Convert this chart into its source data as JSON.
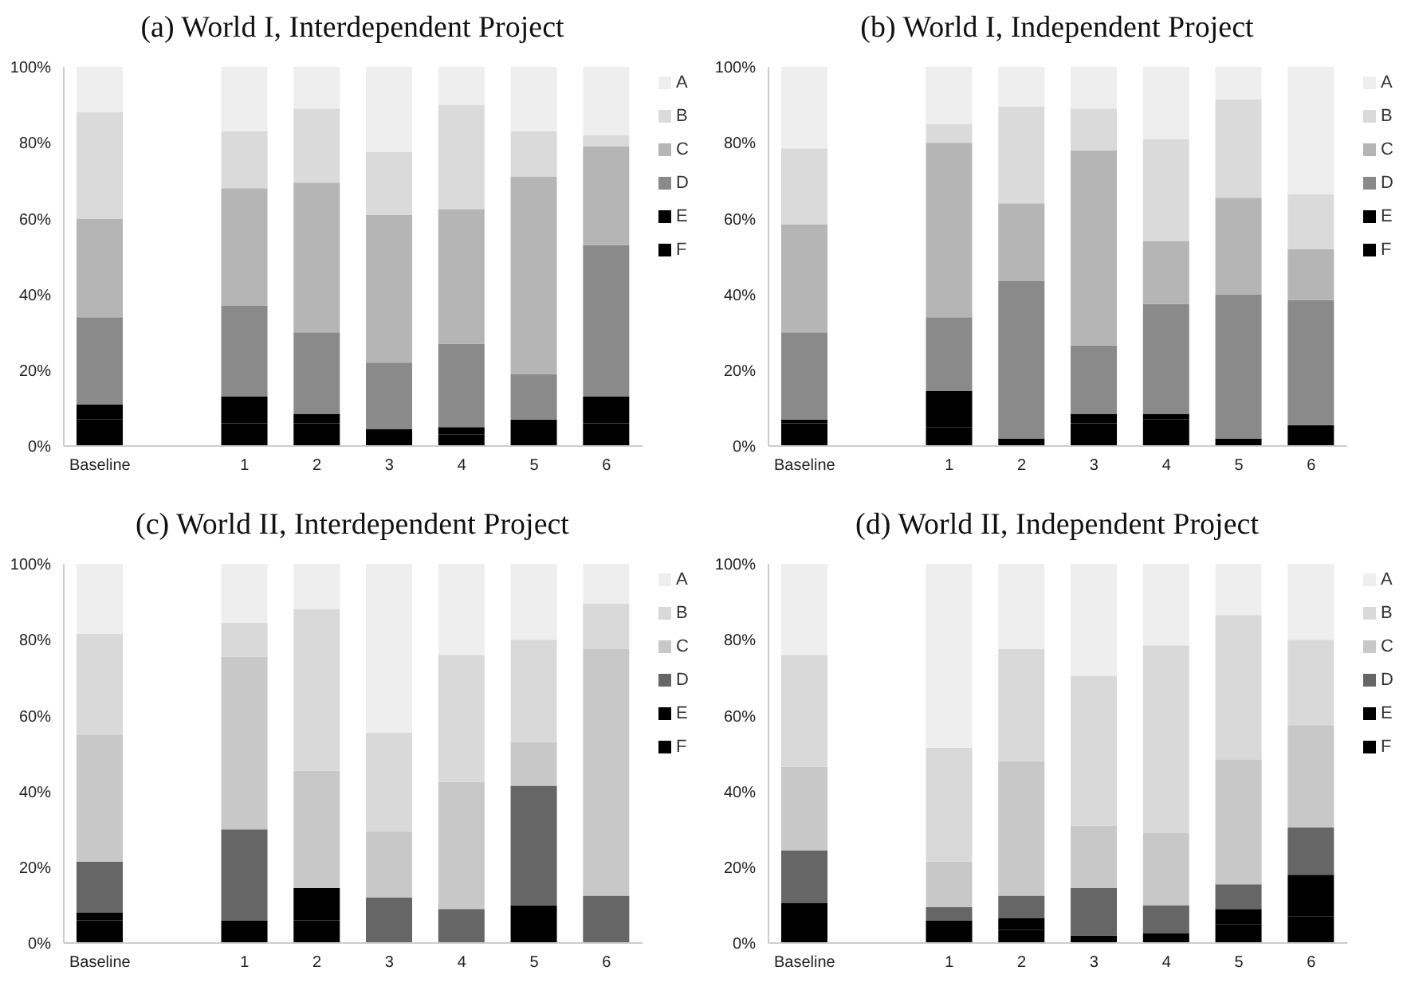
{
  "chart_data": [
    {
      "type": "bar",
      "title": "(a) World I, Interdependent Project",
      "categories": [
        "Baseline",
        null,
        "1",
        "2",
        "3",
        "4",
        "5",
        "6"
      ],
      "stacked": true,
      "ylim": [
        0,
        100
      ],
      "yticks": [
        {
          "value": 0,
          "label": "0%"
        },
        {
          "value": 20,
          "label": "20%"
        },
        {
          "value": 40,
          "label": "40%"
        },
        {
          "value": 60,
          "label": "60%"
        },
        {
          "value": 80,
          "label": "80%"
        },
        {
          "value": 100,
          "label": "100%"
        }
      ],
      "legend": "right",
      "grid": false,
      "series": [
        {
          "name": "F",
          "color": "#000000",
          "values": [
            7,
            null,
            6,
            6,
            2.5,
            3,
            7,
            6
          ]
        },
        {
          "name": "E",
          "color": "#000000",
          "values": [
            4,
            null,
            7,
            2.5,
            2,
            2,
            0,
            7
          ]
        },
        {
          "name": "D",
          "color": "#8a8a8a",
          "values": [
            23,
            null,
            24,
            21.5,
            17.5,
            22,
            12,
            40
          ]
        },
        {
          "name": "C",
          "color": "#b5b5b5",
          "values": [
            26,
            null,
            31,
            39.5,
            39,
            35.5,
            52,
            26
          ]
        },
        {
          "name": "B",
          "color": "#dadada",
          "values": [
            28,
            null,
            15,
            19.5,
            16.5,
            27.5,
            12,
            3
          ]
        },
        {
          "name": "A",
          "color": "#eeeeee",
          "values": [
            12,
            null,
            17,
            11,
            22.5,
            10,
            17,
            18
          ]
        }
      ]
    },
    {
      "type": "bar",
      "title": "(b) World I, Independent Project",
      "categories": [
        "Baseline",
        null,
        "1",
        "2",
        "3",
        "4",
        "5",
        "6"
      ],
      "stacked": true,
      "ylim": [
        0,
        100
      ],
      "yticks": [
        {
          "value": 0,
          "label": "0%"
        },
        {
          "value": 20,
          "label": "20%"
        },
        {
          "value": 40,
          "label": "40%"
        },
        {
          "value": 60,
          "label": "60%"
        },
        {
          "value": 80,
          "label": "80%"
        },
        {
          "value": 100,
          "label": "100%"
        }
      ],
      "legend": "right",
      "grid": false,
      "series": [
        {
          "name": "F",
          "color": "#000000",
          "values": [
            6,
            null,
            5,
            2,
            6,
            7,
            2,
            5.5
          ]
        },
        {
          "name": "E",
          "color": "#000000",
          "values": [
            1,
            null,
            9.5,
            0,
            2.5,
            1.5,
            0,
            0
          ]
        },
        {
          "name": "D",
          "color": "#8a8a8a",
          "values": [
            23,
            null,
            19.5,
            41.5,
            18,
            29,
            38,
            33
          ]
        },
        {
          "name": "C",
          "color": "#b5b5b5",
          "values": [
            28.5,
            null,
            46,
            20.5,
            51.5,
            16.5,
            25.5,
            13.5
          ]
        },
        {
          "name": "B",
          "color": "#dadada",
          "values": [
            20,
            null,
            5,
            25.5,
            11,
            27,
            26,
            14.5
          ]
        },
        {
          "name": "A",
          "color": "#eeeeee",
          "values": [
            21.5,
            null,
            15,
            10.5,
            11,
            19,
            8.5,
            33.5
          ]
        }
      ]
    },
    {
      "type": "bar",
      "title": "(c) World II, Interdependent Project",
      "categories": [
        "Baseline",
        null,
        "1",
        "2",
        "3",
        "4",
        "5",
        "6"
      ],
      "stacked": true,
      "ylim": [
        0,
        100
      ],
      "yticks": [
        {
          "value": 0,
          "label": "0%"
        },
        {
          "value": 20,
          "label": "20%"
        },
        {
          "value": 40,
          "label": "40%"
        },
        {
          "value": 60,
          "label": "60%"
        },
        {
          "value": 80,
          "label": "80%"
        },
        {
          "value": 100,
          "label": "100%"
        }
      ],
      "legend": "right",
      "grid": false,
      "series": [
        {
          "name": "F",
          "color": "#000000",
          "values": [
            6,
            null,
            6,
            6,
            0,
            0,
            8,
            0
          ]
        },
        {
          "name": "E",
          "color": "#000000",
          "values": [
            2,
            null,
            0,
            8.5,
            0,
            0,
            2,
            0
          ]
        },
        {
          "name": "D",
          "color": "#666666",
          "values": [
            13.5,
            null,
            24,
            0,
            12,
            9,
            31.5,
            12.5
          ]
        },
        {
          "name": "C",
          "color": "#c8c8c8",
          "values": [
            33.5,
            null,
            45.5,
            31,
            17.5,
            33.5,
            11.5,
            65
          ]
        },
        {
          "name": "B",
          "color": "#d9d9d9",
          "values": [
            26.5,
            null,
            9,
            42.5,
            26,
            33.5,
            27,
            12
          ]
        },
        {
          "name": "A",
          "color": "#eeeeee",
          "values": [
            18.5,
            null,
            15.5,
            12,
            44.5,
            24,
            20,
            10.5
          ]
        }
      ]
    },
    {
      "type": "bar",
      "title": "(d) World II, Independent Project",
      "categories": [
        "Baseline",
        null,
        "1",
        "2",
        "3",
        "4",
        "5",
        "6"
      ],
      "stacked": true,
      "ylim": [
        0,
        100
      ],
      "yticks": [
        {
          "value": 0,
          "label": "0%"
        },
        {
          "value": 20,
          "label": "20%"
        },
        {
          "value": 40,
          "label": "40%"
        },
        {
          "value": 60,
          "label": "60%"
        },
        {
          "value": 80,
          "label": "80%"
        },
        {
          "value": 100,
          "label": "100%"
        }
      ],
      "legend": "right",
      "grid": false,
      "series": [
        {
          "name": "F",
          "color": "#000000",
          "values": [
            4,
            null,
            2.5,
            3.5,
            2,
            2.5,
            5,
            7
          ]
        },
        {
          "name": "E",
          "color": "#000000",
          "values": [
            6.5,
            null,
            3.5,
            3,
            0,
            0,
            4,
            11
          ]
        },
        {
          "name": "D",
          "color": "#666666",
          "values": [
            14,
            null,
            3.5,
            6,
            12.5,
            7.5,
            6.5,
            12.5
          ]
        },
        {
          "name": "C",
          "color": "#c8c8c8",
          "values": [
            22,
            null,
            12,
            35.5,
            16.5,
            19,
            33,
            27
          ]
        },
        {
          "name": "B",
          "color": "#d9d9d9",
          "values": [
            29.5,
            null,
            30,
            29.5,
            39.5,
            49.5,
            38,
            22.5
          ]
        },
        {
          "name": "A",
          "color": "#eeeeee",
          "values": [
            24,
            null,
            48.5,
            22.5,
            29.5,
            21.5,
            13.5,
            20
          ]
        }
      ]
    }
  ]
}
